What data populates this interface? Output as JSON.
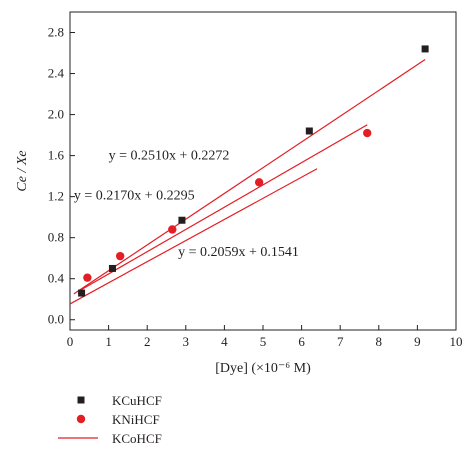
{
  "chart_data": {
    "type": "scatter",
    "xlabel": "[Dye] (×10⁻⁶ M)",
    "ylabel": "Ce / Xe",
    "xlim": [
      0,
      10
    ],
    "ylim": [
      -0.1,
      3.0
    ],
    "x_ticks": [
      0,
      1,
      2,
      3,
      4,
      5,
      6,
      7,
      8,
      9,
      10
    ],
    "y_ticks": [
      0.0,
      0.4,
      0.8,
      1.2,
      1.6,
      2.0,
      2.4,
      2.8
    ],
    "grid": false,
    "legend_position": "bottom-left",
    "series": [
      {
        "name": "KCuHCF",
        "marker": "square",
        "color": "#231f20",
        "x": [
          0.3,
          1.1,
          2.9,
          6.2,
          9.2
        ],
        "y": [
          0.26,
          0.5,
          0.97,
          1.84,
          2.64
        ]
      },
      {
        "name": "KNiHCF",
        "marker": "circle",
        "color": "#e31e24",
        "x": [
          0.45,
          1.3,
          2.65,
          4.9,
          7.7
        ],
        "y": [
          0.41,
          0.62,
          0.88,
          1.34,
          1.82
        ]
      },
      {
        "name": "KCoHCF",
        "marker": "line",
        "color": "#e31e24",
        "x": [],
        "y": []
      }
    ],
    "fit_lines": [
      {
        "slope": 0.251,
        "intercept": 0.2272,
        "x_range": [
          0.1,
          9.2
        ],
        "color": "#e31e24"
      },
      {
        "slope": 0.217,
        "intercept": 0.2295,
        "x_range": [
          0.3,
          7.7
        ],
        "color": "#e31e24"
      },
      {
        "slope": 0.2059,
        "intercept": 0.1541,
        "x_range": [
          0.0,
          6.4
        ],
        "color": "#e31e24"
      }
    ],
    "annotations": [
      {
        "id": "eq1",
        "text": "y = 0.2510x + 0.2272",
        "x": 1.0,
        "y": 1.56
      },
      {
        "id": "eq2",
        "text": "y = 0.2170x + 0.2295",
        "x": 0.1,
        "y": 1.17
      },
      {
        "id": "eq3",
        "text": "y = 0.2059x + 0.1541",
        "x": 2.8,
        "y": 0.62
      }
    ]
  }
}
